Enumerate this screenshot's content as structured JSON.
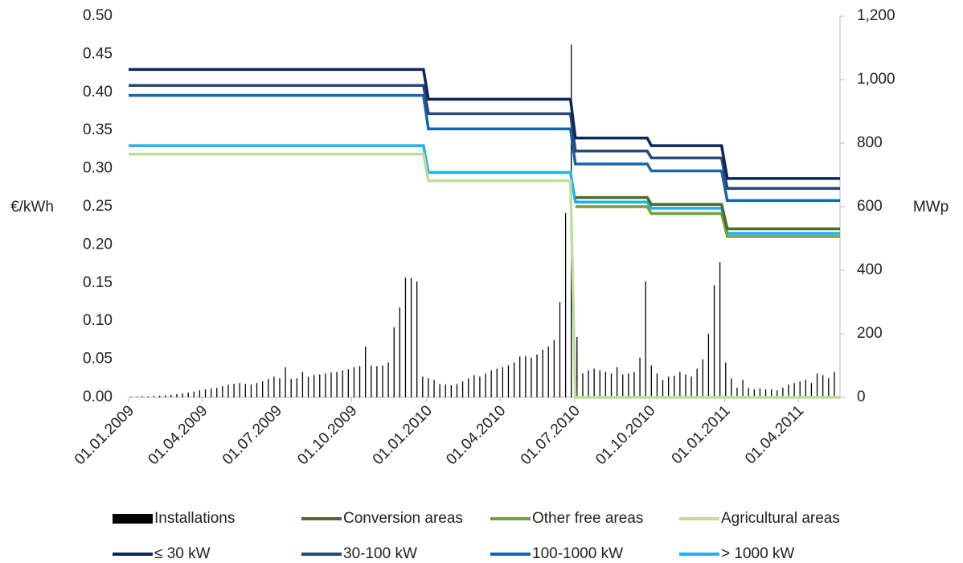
{
  "chart_data": {
    "type": "combo",
    "ylabel": "€/kWh",
    "y2label": "MWp",
    "xlim": [
      0,
      871
    ],
    "xticks": [
      {
        "value": 0,
        "label": "01.01.2009"
      },
      {
        "value": 90,
        "label": "01.04.2009"
      },
      {
        "value": 181,
        "label": "01.07.2009"
      },
      {
        "value": 273,
        "label": "01.10.2009"
      },
      {
        "value": 365,
        "label": "01.01.2010"
      },
      {
        "value": 455,
        "label": "01.04.2010"
      },
      {
        "value": 546,
        "label": "01.07.2010"
      },
      {
        "value": 638,
        "label": "01.10.2010"
      },
      {
        "value": 730,
        "label": "01.01.2011"
      },
      {
        "value": 820,
        "label": "01.04.2011"
      }
    ],
    "ylim": [
      0,
      0.5
    ],
    "yticks": [
      {
        "value": 0,
        "label": "0.00"
      },
      {
        "value": 0.05,
        "label": "0.05"
      },
      {
        "value": 0.1,
        "label": "0.10"
      },
      {
        "value": 0.15,
        "label": "0.15"
      },
      {
        "value": 0.2,
        "label": "0.20"
      },
      {
        "value": 0.25,
        "label": "0.25"
      },
      {
        "value": 0.3,
        "label": "0.30"
      },
      {
        "value": 0.35,
        "label": "0.35"
      },
      {
        "value": 0.4,
        "label": "0.40"
      },
      {
        "value": 0.45,
        "label": "0.45"
      },
      {
        "value": 0.5,
        "label": "0.50"
      }
    ],
    "y2lim": [
      0,
      1200
    ],
    "y2ticks": [
      0,
      200,
      400,
      600,
      800,
      {
        "value": 1000,
        "label": "1,000"
      },
      {
        "value": 1200,
        "label": "1,200"
      }
    ],
    "grid": false,
    "legend": "bottom",
    "series": [
      {
        "name": "Installations",
        "type": "bar",
        "axis": "y2",
        "color": "#000000",
        "x": [
          3,
          10,
          17,
          24,
          31,
          38,
          45,
          52,
          59,
          66,
          73,
          80,
          87,
          94,
          101,
          108,
          115,
          122,
          129,
          136,
          143,
          150,
          157,
          164,
          171,
          178,
          185,
          192,
          199,
          206,
          213,
          220,
          227,
          234,
          241,
          248,
          255,
          262,
          269,
          276,
          283,
          290,
          297,
          304,
          311,
          318,
          325,
          332,
          339,
          346,
          353,
          360,
          367,
          374,
          381,
          388,
          395,
          402,
          409,
          416,
          423,
          430,
          437,
          444,
          451,
          458,
          465,
          472,
          479,
          486,
          493,
          500,
          507,
          514,
          521,
          528,
          535,
          542,
          549,
          556,
          563,
          570,
          577,
          584,
          591,
          598,
          605,
          612,
          619,
          626,
          633,
          640,
          647,
          654,
          661,
          668,
          675,
          682,
          689,
          696,
          703,
          710,
          717,
          724,
          731,
          738,
          745,
          752,
          759,
          766,
          773,
          780,
          787,
          794,
          801,
          808,
          815,
          822,
          829,
          836,
          843,
          850,
          857,
          864
        ],
        "values": [
          2,
          2,
          3,
          3,
          4,
          5,
          6,
          8,
          10,
          12,
          15,
          18,
          22,
          25,
          28,
          30,
          35,
          40,
          42,
          45,
          42,
          40,
          45,
          50,
          58,
          65,
          60,
          95,
          58,
          60,
          80,
          65,
          70,
          72,
          75,
          78,
          80,
          85,
          88,
          95,
          98,
          160,
          100,
          98,
          100,
          110,
          220,
          283,
          377,
          376,
          365,
          65,
          60,
          55,
          42,
          40,
          38,
          42,
          50,
          60,
          70,
          65,
          75,
          85,
          90,
          95,
          100,
          110,
          128,
          130,
          125,
          135,
          150,
          160,
          180,
          300,
          580,
          1110,
          190,
          75,
          85,
          90,
          85,
          80,
          75,
          95,
          72,
          75,
          80,
          125,
          365,
          100,
          75,
          55,
          65,
          68,
          80,
          72,
          65,
          90,
          120,
          200,
          353,
          425,
          110,
          60,
          30,
          55,
          30,
          25,
          28,
          25,
          25,
          22,
          30,
          40,
          45,
          50,
          55,
          45,
          75,
          70,
          60,
          80
        ]
      },
      {
        "name": "Conversion areas",
        "type": "line",
        "color": "#4e6a2a",
        "x": [
          547,
          635,
          640,
          726,
          733,
          871
        ],
        "values": [
          0.262,
          0.262,
          0.253,
          0.253,
          0.221,
          0.221
        ]
      },
      {
        "name": "Other free areas",
        "type": "line",
        "color": "#72a03e",
        "x": [
          547,
          635,
          640,
          726,
          733,
          871
        ],
        "values": [
          0.25,
          0.25,
          0.241,
          0.241,
          0.211,
          0.211
        ]
      },
      {
        "name": "Agricultural areas",
        "type": "line",
        "color": "#c3dc9c",
        "x": [
          0,
          361,
          367,
          541,
          547,
          871
        ],
        "values": [
          0.319,
          0.319,
          0.284,
          0.284,
          0,
          0
        ]
      },
      {
        "name": "≤ 30 kW",
        "type": "line",
        "color": "#0b2658",
        "x": [
          0,
          361,
          367,
          541,
          547,
          635,
          640,
          726,
          733,
          871
        ],
        "values": [
          0.43,
          0.43,
          0.391,
          0.391,
          0.34,
          0.34,
          0.33,
          0.33,
          0.287,
          0.287
        ]
      },
      {
        "name": "30-100 kW",
        "type": "line",
        "color": "#28497a",
        "x": [
          0,
          361,
          367,
          541,
          547,
          635,
          640,
          726,
          733,
          871
        ],
        "values": [
          0.409,
          0.409,
          0.372,
          0.372,
          0.323,
          0.323,
          0.314,
          0.314,
          0.274,
          0.274
        ]
      },
      {
        "name": "100-1000 kW",
        "type": "line",
        "color": "#1566b0",
        "x": [
          0,
          361,
          367,
          541,
          547,
          635,
          640,
          726,
          733,
          871
        ],
        "values": [
          0.396,
          0.396,
          0.352,
          0.352,
          0.306,
          0.306,
          0.297,
          0.297,
          0.258,
          0.258
        ]
      },
      {
        "name": "> 1000 kW",
        "type": "line",
        "color": "#1db2ea",
        "x": [
          0,
          361,
          367,
          541,
          547,
          635,
          640,
          726,
          733,
          871
        ],
        "values": [
          0.33,
          0.33,
          0.295,
          0.295,
          0.256,
          0.256,
          0.248,
          0.248,
          0.215,
          0.215
        ]
      }
    ]
  }
}
